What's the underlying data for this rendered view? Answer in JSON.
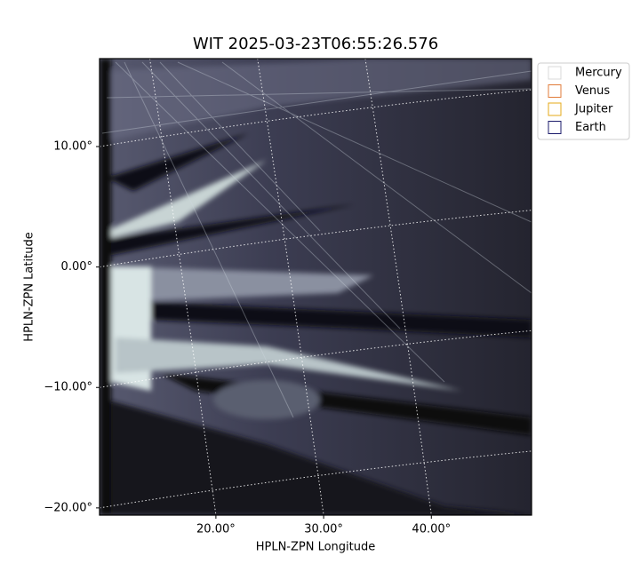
{
  "chart_data": {
    "type": "image",
    "title": "WIT 2025-03-23T06:55:26.576",
    "x_label": "HPLN-ZPN Longitude",
    "y_label": "HPLN-ZPN Latitude",
    "xlim": [
      9.2,
      49.3
    ],
    "ylim": [
      -20.6,
      17.3
    ],
    "xticks": [
      {
        "value": 20,
        "label": "20.00°"
      },
      {
        "value": 30,
        "label": "30.00°"
      },
      {
        "value": 40,
        "label": "40.00°"
      }
    ],
    "yticks": [
      {
        "value": 10,
        "label": "10.00°"
      },
      {
        "value": 0,
        "label": "0.00°"
      },
      {
        "value": -10,
        "label": "−10.00°"
      },
      {
        "value": -20,
        "label": "−20.00°"
      }
    ],
    "grid": true,
    "legend_position": "outside-upper-right",
    "legend": [
      {
        "name": "Mercury",
        "color": "#d8d8d8"
      },
      {
        "name": "Venus",
        "color": "#e07b39"
      },
      {
        "name": "Jupiter",
        "color": "#e6a817"
      },
      {
        "name": "Earth",
        "color": "#1b1b6b"
      }
    ]
  }
}
